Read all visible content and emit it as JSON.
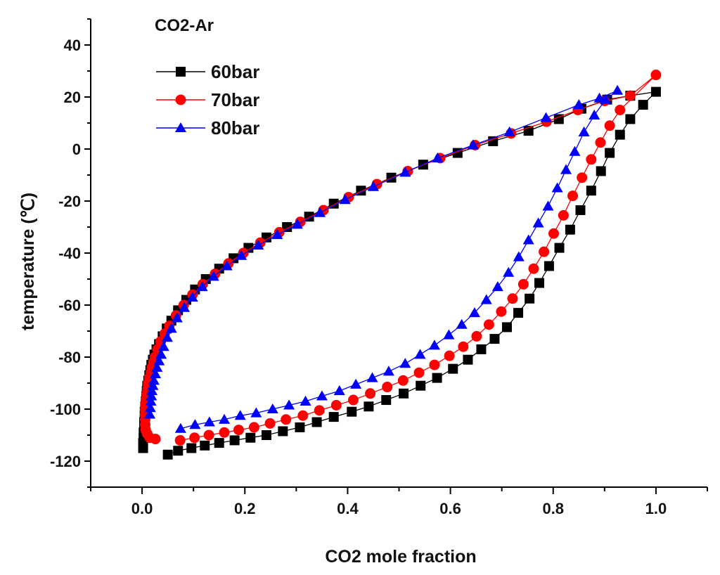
{
  "chart_data": {
    "type": "scatter",
    "title": "CO2-Ar",
    "xlabel": "CO2 mole fraction",
    "ylabel": "temperature (℃)",
    "xlim": [
      -0.1,
      1.1
    ],
    "ylim": [
      -130,
      50
    ],
    "xticks": [
      0.0,
      0.2,
      0.4,
      0.6,
      0.8,
      1.0
    ],
    "xtick_labels": [
      "0.0",
      "0.2",
      "0.4",
      "0.6",
      "0.8",
      "1.0"
    ],
    "yticks": [
      -120,
      -100,
      -80,
      -60,
      -40,
      -20,
      0,
      20,
      40
    ],
    "ytick_labels": [
      "-120",
      "-100",
      "-80",
      "-60",
      "-40",
      "-20",
      "0",
      "20",
      "40"
    ],
    "legend_position": "top-left",
    "series": [
      {
        "name": "60bar",
        "color": "#000000",
        "marker": "square",
        "points": [
          [
            0.002,
            -115
          ],
          [
            0.002,
            -113
          ],
          [
            0.003,
            -111
          ],
          [
            0.003,
            -109
          ],
          [
            0.004,
            -107
          ],
          [
            0.004,
            -105
          ],
          [
            0.005,
            -103
          ],
          [
            0.005,
            -101
          ],
          [
            0.006,
            -99
          ],
          [
            0.007,
            -97
          ],
          [
            0.008,
            -95
          ],
          [
            0.009,
            -93
          ],
          [
            0.01,
            -91
          ],
          [
            0.012,
            -89
          ],
          [
            0.014,
            -87
          ],
          [
            0.016,
            -85
          ],
          [
            0.018,
            -83
          ],
          [
            0.021,
            -81
          ],
          [
            0.024,
            -79
          ],
          [
            0.028,
            -77
          ],
          [
            0.033,
            -75
          ],
          [
            0.04,
            -72
          ],
          [
            0.048,
            -69
          ],
          [
            0.057,
            -66
          ],
          [
            0.07,
            -62
          ],
          [
            0.086,
            -58
          ],
          [
            0.103,
            -54
          ],
          [
            0.124,
            -50
          ],
          [
            0.15,
            -46
          ],
          [
            0.178,
            -42
          ],
          [
            0.207,
            -38
          ],
          [
            0.242,
            -34
          ],
          [
            0.282,
            -30
          ],
          [
            0.325,
            -26
          ],
          [
            0.373,
            -21
          ],
          [
            0.426,
            -16
          ],
          [
            0.485,
            -11
          ],
          [
            0.547,
            -6
          ],
          [
            0.614,
            -1.5
          ],
          [
            0.683,
            3
          ],
          [
            0.752,
            7
          ],
          [
            0.811,
            11.5
          ],
          [
            0.855,
            15.5
          ],
          [
            0.905,
            19
          ],
          [
            0.95,
            20.5
          ],
          [
            1.0,
            22
          ],
          [
            0.975,
            17
          ],
          [
            0.95,
            11.5
          ],
          [
            0.93,
            5.5
          ],
          [
            0.91,
            -1.5
          ],
          [
            0.893,
            -8.5
          ],
          [
            0.874,
            -16
          ],
          [
            0.853,
            -23.5
          ],
          [
            0.833,
            -31
          ],
          [
            0.812,
            -38
          ],
          [
            0.792,
            -45
          ],
          [
            0.773,
            -51.5
          ],
          [
            0.754,
            -57.5
          ],
          [
            0.732,
            -63
          ],
          [
            0.71,
            -68.5
          ],
          [
            0.686,
            -73
          ],
          [
            0.66,
            -77
          ],
          [
            0.634,
            -81
          ],
          [
            0.605,
            -84.5
          ],
          [
            0.574,
            -88
          ],
          [
            0.542,
            -91
          ],
          [
            0.509,
            -94
          ],
          [
            0.475,
            -96.5
          ],
          [
            0.441,
            -99
          ],
          [
            0.408,
            -101
          ],
          [
            0.373,
            -103
          ],
          [
            0.34,
            -105
          ],
          [
            0.307,
            -107
          ],
          [
            0.274,
            -108.5
          ],
          [
            0.242,
            -110
          ],
          [
            0.211,
            -111
          ],
          [
            0.18,
            -112
          ],
          [
            0.15,
            -113
          ],
          [
            0.122,
            -114
          ],
          [
            0.096,
            -115
          ],
          [
            0.07,
            -116
          ],
          [
            0.05,
            -117.5
          ]
        ]
      },
      {
        "name": "70bar",
        "color": "#ff0000",
        "marker": "circle",
        "points": [
          [
            0.026,
            -111.5
          ],
          [
            0.015,
            -111
          ],
          [
            0.01,
            -109.5
          ],
          [
            0.007,
            -108
          ],
          [
            0.006,
            -106
          ],
          [
            0.006,
            -104
          ],
          [
            0.006,
            -102
          ],
          [
            0.006,
            -100
          ],
          [
            0.007,
            -98
          ],
          [
            0.008,
            -96
          ],
          [
            0.009,
            -94
          ],
          [
            0.011,
            -92
          ],
          [
            0.012,
            -90
          ],
          [
            0.014,
            -88
          ],
          [
            0.017,
            -86
          ],
          [
            0.019,
            -84
          ],
          [
            0.022,
            -82
          ],
          [
            0.025,
            -80
          ],
          [
            0.03,
            -77
          ],
          [
            0.036,
            -74
          ],
          [
            0.044,
            -71
          ],
          [
            0.053,
            -68
          ],
          [
            0.066,
            -64
          ],
          [
            0.081,
            -60
          ],
          [
            0.098,
            -56
          ],
          [
            0.118,
            -52
          ],
          [
            0.142,
            -48
          ],
          [
            0.168,
            -44
          ],
          [
            0.197,
            -40
          ],
          [
            0.23,
            -36
          ],
          [
            0.267,
            -32
          ],
          [
            0.308,
            -28
          ],
          [
            0.353,
            -23.5
          ],
          [
            0.402,
            -18.5
          ],
          [
            0.457,
            -13.5
          ],
          [
            0.517,
            -8.5
          ],
          [
            0.58,
            -3.5
          ],
          [
            0.648,
            1.5
          ],
          [
            0.718,
            6
          ],
          [
            0.787,
            10.5
          ],
          [
            0.848,
            15
          ],
          [
            0.9,
            18.5
          ],
          [
            0.95,
            20.5
          ],
          [
            1.0,
            28.5
          ],
          [
            0.93,
            15
          ],
          [
            0.91,
            9
          ],
          [
            0.892,
            2.5
          ],
          [
            0.874,
            -4
          ],
          [
            0.856,
            -11
          ],
          [
            0.838,
            -18
          ],
          [
            0.82,
            -25.5
          ],
          [
            0.801,
            -32.5
          ],
          [
            0.782,
            -39.5
          ],
          [
            0.762,
            -46
          ],
          [
            0.742,
            -52
          ],
          [
            0.721,
            -57.5
          ],
          [
            0.699,
            -62.5
          ],
          [
            0.675,
            -67.5
          ],
          [
            0.651,
            -72
          ],
          [
            0.625,
            -76
          ],
          [
            0.598,
            -79.5
          ],
          [
            0.569,
            -83
          ],
          [
            0.539,
            -86
          ],
          [
            0.508,
            -89
          ],
          [
            0.477,
            -91.5
          ],
          [
            0.444,
            -94
          ],
          [
            0.411,
            -96.5
          ],
          [
            0.378,
            -98.5
          ],
          [
            0.345,
            -100.5
          ],
          [
            0.313,
            -102.5
          ],
          [
            0.28,
            -104
          ],
          [
            0.249,
            -105.5
          ],
          [
            0.218,
            -107
          ],
          [
            0.188,
            -108
          ],
          [
            0.16,
            -109
          ],
          [
            0.13,
            -110
          ],
          [
            0.102,
            -111
          ],
          [
            0.074,
            -112
          ]
        ]
      },
      {
        "name": "80bar",
        "color": "#0000ff",
        "marker": "triangle",
        "points": [
          [
            0.015,
            -102
          ],
          [
            0.016,
            -99.5
          ],
          [
            0.017,
            -97
          ],
          [
            0.018,
            -95
          ],
          [
            0.019,
            -93
          ],
          [
            0.021,
            -91
          ],
          [
            0.023,
            -89
          ],
          [
            0.026,
            -86.5
          ],
          [
            0.029,
            -84
          ],
          [
            0.033,
            -81.5
          ],
          [
            0.037,
            -79
          ],
          [
            0.042,
            -76
          ],
          [
            0.049,
            -72.5
          ],
          [
            0.057,
            -69
          ],
          [
            0.068,
            -65
          ],
          [
            0.082,
            -61
          ],
          [
            0.098,
            -57
          ],
          [
            0.117,
            -53
          ],
          [
            0.139,
            -49
          ],
          [
            0.165,
            -45
          ],
          [
            0.193,
            -41
          ],
          [
            0.226,
            -37
          ],
          [
            0.263,
            -33
          ],
          [
            0.302,
            -29
          ],
          [
            0.346,
            -24.5
          ],
          [
            0.395,
            -19.5
          ],
          [
            0.45,
            -14.5
          ],
          [
            0.512,
            -9
          ],
          [
            0.575,
            -3.5
          ],
          [
            0.644,
            1.5
          ],
          [
            0.715,
            6.5
          ],
          [
            0.786,
            12
          ],
          [
            0.85,
            17
          ],
          [
            0.89,
            19.5
          ],
          [
            0.925,
            22.5
          ],
          [
            0.902,
            19
          ],
          [
            0.88,
            13
          ],
          [
            0.86,
            6.5
          ],
          [
            0.842,
            -1
          ],
          [
            0.825,
            -8
          ],
          [
            0.808,
            -15
          ],
          [
            0.79,
            -22
          ],
          [
            0.771,
            -28.5
          ],
          [
            0.752,
            -35
          ],
          [
            0.733,
            -41.5
          ],
          [
            0.713,
            -47.5
          ],
          [
            0.692,
            -53
          ],
          [
            0.67,
            -58
          ],
          [
            0.647,
            -63
          ],
          [
            0.622,
            -67.5
          ],
          [
            0.597,
            -71.5
          ],
          [
            0.569,
            -75.5
          ],
          [
            0.541,
            -79
          ],
          [
            0.512,
            -82.5
          ],
          [
            0.48,
            -85.5
          ],
          [
            0.448,
            -88
          ],
          [
            0.416,
            -90.5
          ],
          [
            0.384,
            -93
          ],
          [
            0.35,
            -95
          ],
          [
            0.318,
            -97
          ],
          [
            0.286,
            -98.5
          ],
          [
            0.254,
            -100
          ],
          [
            0.222,
            -101.5
          ],
          [
            0.191,
            -102.5
          ],
          [
            0.16,
            -104
          ],
          [
            0.131,
            -105
          ],
          [
            0.103,
            -106
          ],
          [
            0.075,
            -107.5
          ]
        ]
      }
    ]
  }
}
